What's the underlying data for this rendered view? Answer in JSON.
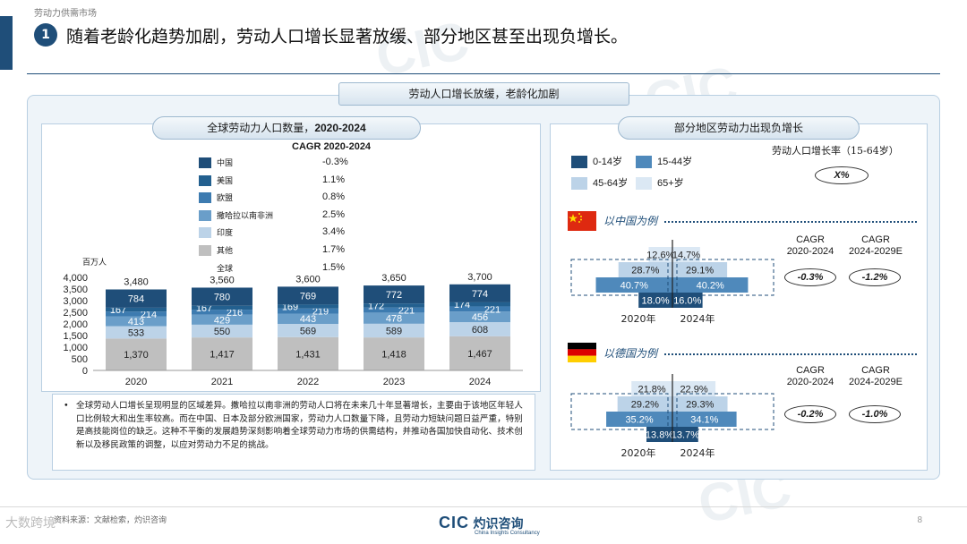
{
  "header": {
    "section_label": "劳动力供需市场",
    "number": "1",
    "headline": "随着老龄化趋势加剧，劳动人口增长显著放缓、部分地区甚至出现负增长。"
  },
  "main_banner": "劳动人口增长放缓，老龄化加剧",
  "left_panel": {
    "title_cn": "全球劳动力人口数量，",
    "title_years": "2020-2024",
    "cagr_title": "CAGR 2020-2024",
    "unit": "百万人",
    "legend": [
      {
        "name": "中国",
        "value": "-0.3%",
        "color": "#1f4e79"
      },
      {
        "name": "美国",
        "value": "1.1%",
        "color": "#23608f"
      },
      {
        "name": "欧盟",
        "value": "0.8%",
        "color": "#3d7bb0"
      },
      {
        "name": "撒哈拉以南非洲",
        "value": "2.5%",
        "color": "#6a9ec9"
      },
      {
        "name": "印度",
        "value": "3.4%",
        "color": "#bcd3e8"
      },
      {
        "name": "其他",
        "value": "1.7%",
        "color": "#bfbfbf"
      },
      {
        "name": "全球",
        "value": "1.5%",
        "color": ""
      }
    ]
  },
  "chart_data": [
    {
      "type": "bar",
      "stacked": true,
      "categories": [
        "2020",
        "2021",
        "2022",
        "2023",
        "2024"
      ],
      "series": [
        {
          "name": "其他",
          "values": [
            1370,
            1417,
            1431,
            1418,
            1467
          ],
          "color": "#bfbfbf"
        },
        {
          "name": "印度",
          "values": [
            533,
            550,
            569,
            589,
            608
          ],
          "color": "#bcd3e8"
        },
        {
          "name": "撒哈拉以南非洲",
          "values": [
            413,
            429,
            443,
            478,
            456
          ],
          "color": "#6a9ec9"
        },
        {
          "name": "欧盟",
          "values": [
            214,
            216,
            219,
            221,
            221
          ],
          "color": "#3d7bb0"
        },
        {
          "name": "美国",
          "values": [
            167,
            167,
            169,
            172,
            174
          ],
          "color": "#23608f"
        },
        {
          "name": "中国",
          "values": [
            784,
            780,
            769,
            772,
            774
          ],
          "color": "#1f4e79"
        }
      ],
      "totals": [
        3480,
        3560,
        3600,
        3650,
        3700
      ],
      "total_labels": [
        "3,480",
        "3,560",
        "3,600",
        "3,650",
        "3,700"
      ],
      "value_labels": [
        [
          "1,370",
          "1,417",
          "1,431",
          "1,418",
          "1,467"
        ],
        [
          "533",
          "550",
          "569",
          "589",
          "608"
        ],
        [
          "413",
          "429",
          "443",
          "478",
          "456"
        ],
        [
          "214",
          "216",
          "219",
          "221",
          "221"
        ],
        [
          "167",
          "167",
          "169",
          "172",
          "174"
        ],
        [
          "784",
          "780",
          "769",
          "772",
          "774"
        ]
      ],
      "yticks": [
        "0",
        "500",
        "1,000",
        "1,500",
        "2,000",
        "2,500",
        "3,000",
        "3,500",
        "4,000"
      ],
      "ylim": [
        0,
        4000
      ]
    },
    {
      "type": "bar",
      "orientation": "horizontal",
      "pyramid": true,
      "title": "以中国为例",
      "categories": [
        "2020年",
        "2024年"
      ],
      "series": [
        {
          "name": "65+岁",
          "values": [
            12.6,
            14.7
          ],
          "labels": [
            "12.6%",
            "14.7%"
          ],
          "color": "#dbe8f4"
        },
        {
          "name": "45-64岁",
          "values": [
            28.7,
            29.1
          ],
          "labels": [
            "28.7%",
            "29.1%"
          ],
          "color": "#bcd3e8"
        },
        {
          "name": "15-44岁",
          "values": [
            40.7,
            40.2
          ],
          "labels": [
            "40.7%",
            "40.2%"
          ],
          "color": "#4f89bb"
        },
        {
          "name": "0-14岁",
          "values": [
            18.0,
            16.0
          ],
          "labels": [
            "18.0%",
            "16.0%"
          ],
          "color": "#1f4e79"
        }
      ]
    },
    {
      "type": "bar",
      "orientation": "horizontal",
      "pyramid": true,
      "title": "以德国为例",
      "categories": [
        "2020年",
        "2024年"
      ],
      "series": [
        {
          "name": "65+岁",
          "values": [
            21.8,
            22.9
          ],
          "labels": [
            "21.8%",
            "22.9%"
          ],
          "color": "#dbe8f4"
        },
        {
          "name": "45-64岁",
          "values": [
            29.2,
            29.3
          ],
          "labels": [
            "29.2%",
            "29.3%"
          ],
          "color": "#bcd3e8"
        },
        {
          "name": "15-44岁",
          "values": [
            35.2,
            34.1
          ],
          "labels": [
            "35.2%",
            "34.1%"
          ],
          "color": "#4f89bb"
        },
        {
          "name": "0-14岁",
          "values": [
            13.8,
            13.7
          ],
          "labels": [
            "13.8%",
            "13.7%"
          ],
          "color": "#1f4e79"
        }
      ]
    }
  ],
  "notes": {
    "bullet": "•",
    "text": "全球劳动人口增长呈现明显的区域差异。撒哈拉以南非洲的劳动人口将在未来几十年显著增长，主要由于该地区年轻人口比例较大和出生率较高。而在中国、日本及部分欧洲国家，劳动力人口数量下降，且劳动力短缺问题日益严重，特别是高技能岗位的缺乏。这种不平衡的发展趋势深刻影响着全球劳动力市场的供需结构，并推动各国加快自动化、技术创新以及移民政策的调整，以应对劳动力不足的挑战。"
  },
  "right_panel": {
    "title": "部分地区劳动力出现负增长",
    "legend": [
      {
        "name": "0-14岁",
        "color": "#1f4e79"
      },
      {
        "name": "15-44岁",
        "color": "#4f89bb"
      },
      {
        "name": "45-64岁",
        "color": "#bcd3e8"
      },
      {
        "name": "65+岁",
        "color": "#dbe8f4"
      }
    ],
    "rate_title": "劳动人口增长率（15-64岁）",
    "rate_placeholder": "X%",
    "china": {
      "example": "以中国为例",
      "cagr1": "CAGR\n2020-2024",
      "cagr2": "CAGR\n2024-2029E",
      "v1": "-0.3%",
      "v2": "-1.2%"
    },
    "germany": {
      "example": "以德国为例",
      "cagr1": "CAGR\n2020-2024",
      "cagr2": "CAGR\n2024-2029E",
      "v1": "-0.2%",
      "v2": "-1.0%"
    }
  },
  "footer": {
    "source": "资料来源：文献检索，灼识咨询",
    "logo_text": "CIC",
    "logo_cn": "灼识咨询",
    "logo_en": "China Insights Consultancy",
    "page": "8",
    "corner": "大数跨境"
  },
  "colors": {
    "brand": "#1f4e79"
  }
}
